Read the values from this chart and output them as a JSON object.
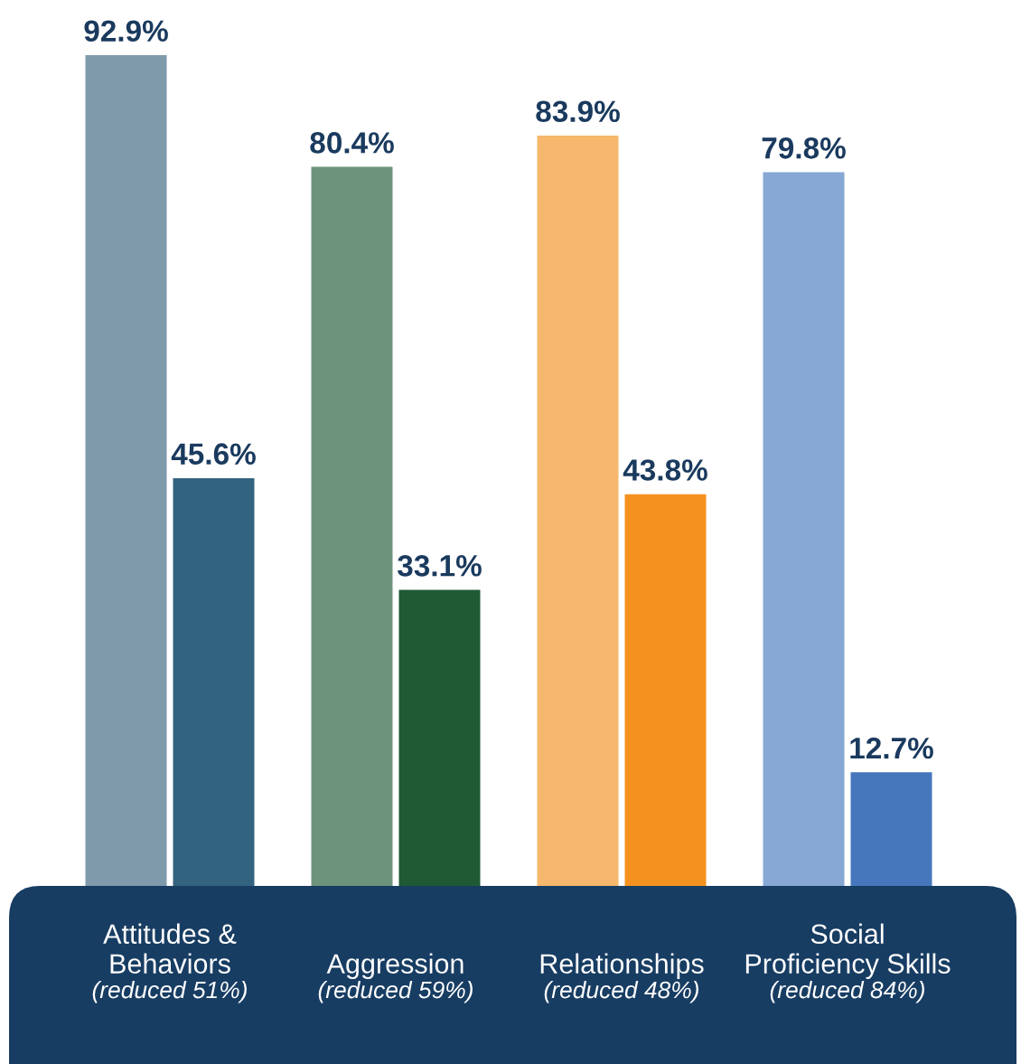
{
  "chart_data": {
    "type": "bar",
    "categories": [
      "Attitudes &\nBehaviors\n(reduced 51%)",
      "Aggression\n(reduced 59%)",
      "Relationships\n(reduced 48%)",
      "Social\nProficiency Skills\n(reduced 84%)"
    ],
    "series": [
      {
        "colors": [
          "#7f9aab",
          "#6e937c",
          "#f6b86c",
          "#87a8d4"
        ],
        "values": [
          92.9,
          80.4,
          83.9,
          79.8
        ],
        "value_labels": [
          "92.9%",
          "80.4%",
          "83.9%",
          "79.8%"
        ]
      },
      {
        "colors": [
          "#33647f",
          "#1f5a35",
          "#f5921f",
          "#4677bd"
        ],
        "values": [
          45.6,
          33.1,
          43.8,
          12.7
        ],
        "value_labels": [
          "45.6%",
          "33.1%",
          "43.8%",
          "12.7%"
        ]
      }
    ]
  }
}
